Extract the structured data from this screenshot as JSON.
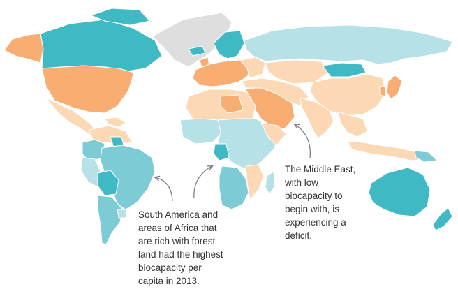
{
  "colors": {
    "surplus_high": "#3fbac4",
    "surplus_mid": "#7ccbd5",
    "surplus_low": "#b5e1e7",
    "deficit_low": "#fdd8b4",
    "deficit_high": "#f8ae72",
    "no_data": "#dedede",
    "border": "#ffffff",
    "annotation_text": "#333333",
    "arrow": "#777777"
  },
  "annotations": {
    "south_america_africa": "South America and\nareas of Africa that\nare rich with forest\nland had the highest\nbiocapacity per\ncapita in 2013.",
    "middle_east": "The Middle East,\nwith low\nbiocapacity to\nbegin with, is\nexperiencing a\ndeficit."
  }
}
